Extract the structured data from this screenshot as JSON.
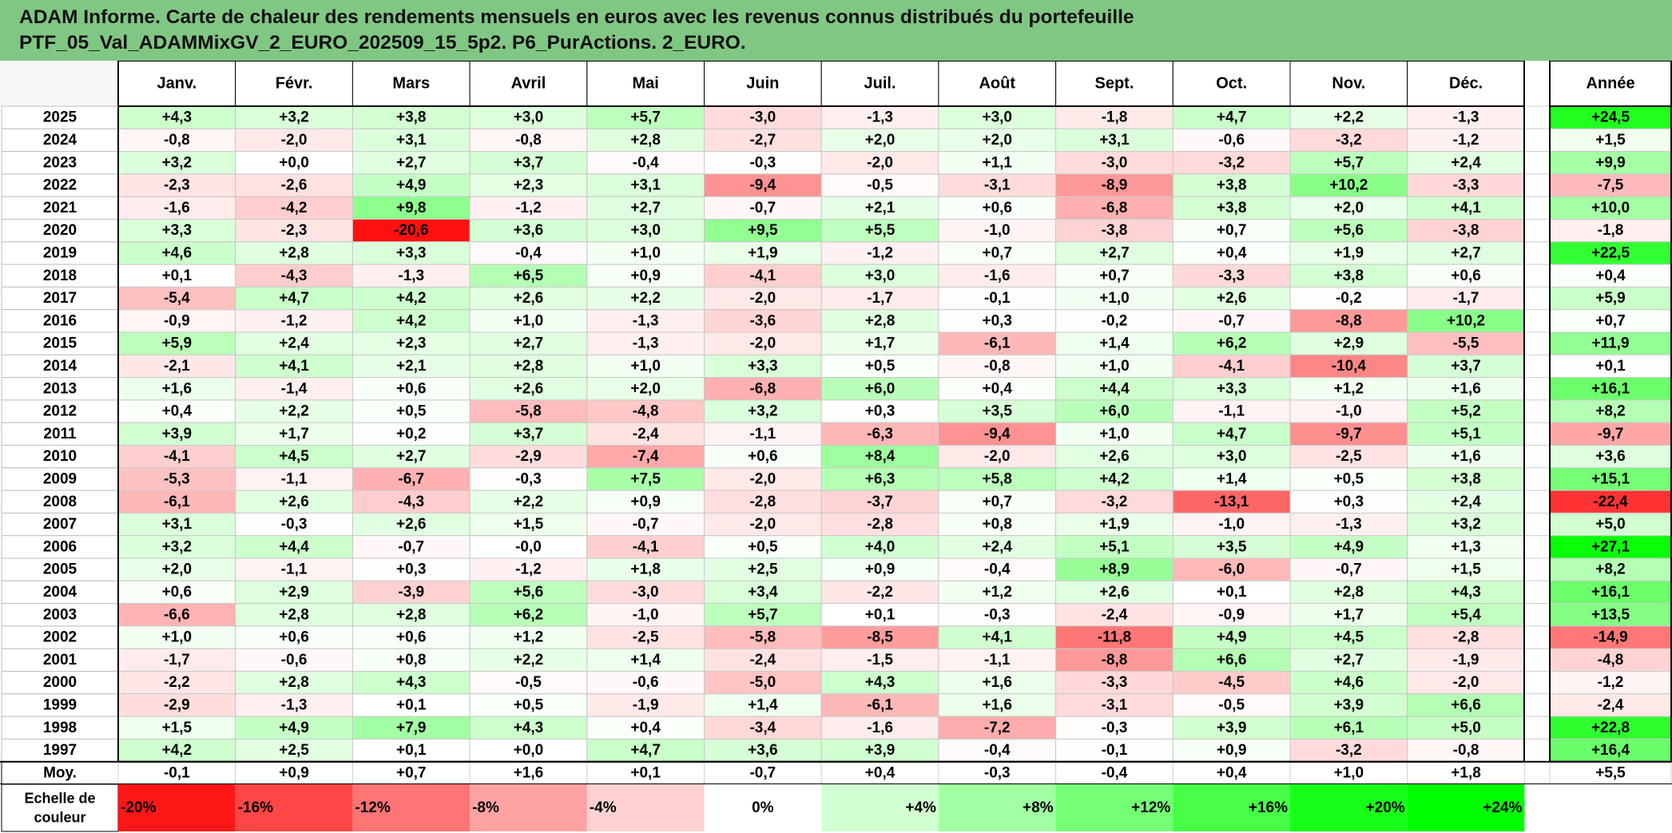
{
  "title_lines": [
    "ADAM Informe. Carte de chaleur des rendements mensuels en euros avec les revenus connus distribués du portefeuille",
    "PTF_05_Val_ADAMMixGV_2_EURO_202509_15_5p2. P6_PurActions. 2_EURO."
  ],
  "chart_data": {
    "type": "heatmap",
    "title": "ADAM Informe. Carte de chaleur des rendements mensuels en euros avec les revenus connus distribués du portefeuille PTF_05_Val_ADAMMixGV_2_EURO_202509_15_5p2. P6_PurActions. 2_EURO.",
    "columns": [
      "Janv.",
      "Févr.",
      "Mars",
      "Avril",
      "Mai",
      "Juin",
      "Juil.",
      "Août",
      "Sept.",
      "Oct.",
      "Nov.",
      "Déc."
    ],
    "year_column": "Année",
    "rows": [
      {
        "year": "2025",
        "months": [
          "+4,3",
          "+3,2",
          "+3,8",
          "+3,0",
          "+5,7",
          "-3,0",
          "-1,3",
          "+3,0",
          "-1,8",
          "+4,7",
          "+2,2",
          "-1,3"
        ],
        "annual": "+24,5"
      },
      {
        "year": "2024",
        "months": [
          "-0,8",
          "-2,0",
          "+3,1",
          "-0,8",
          "+2,8",
          "-2,7",
          "+2,0",
          "+2,0",
          "+3,1",
          "-0,6",
          "-3,2",
          "-1,2"
        ],
        "annual": "+1,5"
      },
      {
        "year": "2023",
        "months": [
          "+3,2",
          "+0,0",
          "+2,7",
          "+3,7",
          "-0,4",
          "-0,3",
          "-2,0",
          "+1,1",
          "-3,0",
          "-3,2",
          "+5,7",
          "+2,4"
        ],
        "annual": "+9,9"
      },
      {
        "year": "2022",
        "months": [
          "-2,3",
          "-2,6",
          "+4,9",
          "+2,3",
          "+3,1",
          "-9,4",
          "-0,5",
          "-3,1",
          "-8,9",
          "+3,8",
          "+10,2",
          "-3,3"
        ],
        "annual": "-7,5"
      },
      {
        "year": "2021",
        "months": [
          "-1,6",
          "-4,2",
          "+9,8",
          "-1,2",
          "+2,7",
          "-0,7",
          "+2,1",
          "+0,6",
          "-6,8",
          "+3,8",
          "+2,0",
          "+4,1"
        ],
        "annual": "+10,0"
      },
      {
        "year": "2020",
        "months": [
          "+3,3",
          "-2,3",
          "-20,6",
          "+3,6",
          "+3,0",
          "+9,5",
          "+5,5",
          "-1,0",
          "-3,8",
          "+0,7",
          "+5,6",
          "-3,8"
        ],
        "annual": "-1,8"
      },
      {
        "year": "2019",
        "months": [
          "+4,6",
          "+2,8",
          "+3,3",
          "-0,4",
          "+1,0",
          "+1,9",
          "-1,2",
          "+0,7",
          "+2,7",
          "+0,4",
          "+1,9",
          "+2,7"
        ],
        "annual": "+22,5"
      },
      {
        "year": "2018",
        "months": [
          "+0,1",
          "-4,3",
          "-1,3",
          "+6,5",
          "+0,9",
          "-4,1",
          "+3,0",
          "-1,6",
          "+0,7",
          "-3,3",
          "+3,8",
          "+0,6"
        ],
        "annual": "+0,4"
      },
      {
        "year": "2017",
        "months": [
          "-5,4",
          "+4,7",
          "+4,2",
          "+2,6",
          "+2,2",
          "-2,0",
          "-1,7",
          "-0,1",
          "+1,0",
          "+2,6",
          "-0,2",
          "-1,7"
        ],
        "annual": "+5,9"
      },
      {
        "year": "2016",
        "months": [
          "-0,9",
          "-1,2",
          "+4,2",
          "+1,0",
          "-1,3",
          "-3,6",
          "+2,8",
          "+0,3",
          "-0,2",
          "-0,7",
          "-8,8",
          "+10,2"
        ],
        "annual": "+0,7"
      },
      {
        "year": "2015",
        "months": [
          "+5,9",
          "+2,4",
          "+2,3",
          "+2,7",
          "-1,3",
          "-2,0",
          "+1,7",
          "-6,1",
          "+1,4",
          "+6,2",
          "+2,9",
          "-5,5"
        ],
        "annual": "+11,9"
      },
      {
        "year": "2014",
        "months": [
          "-2,1",
          "+4,1",
          "+2,1",
          "+2,8",
          "+1,0",
          "+3,3",
          "+0,5",
          "-0,8",
          "+1,0",
          "-4,1",
          "-10,4",
          "+3,7"
        ],
        "annual": "+0,1"
      },
      {
        "year": "2013",
        "months": [
          "+1,6",
          "-1,4",
          "+0,6",
          "+2,6",
          "+2,0",
          "-6,8",
          "+6,0",
          "+0,4",
          "+4,4",
          "+3,3",
          "+1,2",
          "+1,6"
        ],
        "annual": "+16,1"
      },
      {
        "year": "2012",
        "months": [
          "+0,4",
          "+2,2",
          "+0,5",
          "-5,8",
          "-4,8",
          "+3,2",
          "+0,3",
          "+3,5",
          "+6,0",
          "-1,1",
          "-1,0",
          "+5,2"
        ],
        "annual": "+8,2"
      },
      {
        "year": "2011",
        "months": [
          "+3,9",
          "+1,7",
          "+0,2",
          "+3,7",
          "-2,4",
          "-1,1",
          "-6,3",
          "-9,4",
          "+1,0",
          "+4,7",
          "-9,7",
          "+5,1"
        ],
        "annual": "-9,7"
      },
      {
        "year": "2010",
        "months": [
          "-4,1",
          "+4,5",
          "+2,7",
          "-2,9",
          "-7,4",
          "+0,6",
          "+8,4",
          "-2,0",
          "+2,6",
          "+3,0",
          "-2,5",
          "+1,6"
        ],
        "annual": "+3,6"
      },
      {
        "year": "2009",
        "months": [
          "-5,3",
          "-1,1",
          "-6,7",
          "-0,3",
          "+7,5",
          "-2,0",
          "+6,3",
          "+5,8",
          "+4,2",
          "+1,4",
          "+0,5",
          "+3,8"
        ],
        "annual": "+15,1"
      },
      {
        "year": "2008",
        "months": [
          "-6,1",
          "+2,6",
          "-4,3",
          "+2,2",
          "+0,9",
          "-2,8",
          "-3,7",
          "+0,7",
          "-3,2",
          "-13,1",
          "+0,3",
          "+2,4"
        ],
        "annual": "-22,4"
      },
      {
        "year": "2007",
        "months": [
          "+3,1",
          "-0,3",
          "+2,6",
          "+1,5",
          "-0,7",
          "-2,0",
          "-2,8",
          "+0,8",
          "+1,9",
          "-1,0",
          "-1,3",
          "+3,2"
        ],
        "annual": "+5,0"
      },
      {
        "year": "2006",
        "months": [
          "+3,2",
          "+4,4",
          "-0,7",
          "-0,0",
          "-4,1",
          "+0,5",
          "+4,0",
          "+2,4",
          "+5,1",
          "+3,5",
          "+4,9",
          "+1,3"
        ],
        "annual": "+27,1"
      },
      {
        "year": "2005",
        "months": [
          "+2,0",
          "-1,1",
          "+0,3",
          "-1,2",
          "+1,8",
          "+2,5",
          "+0,9",
          "-0,4",
          "+8,9",
          "-6,0",
          "-0,7",
          "+1,5"
        ],
        "annual": "+8,2"
      },
      {
        "year": "2004",
        "months": [
          "+0,6",
          "+2,9",
          "-3,9",
          "+5,6",
          "-3,0",
          "+3,4",
          "-2,2",
          "+1,2",
          "+2,6",
          "+0,1",
          "+2,8",
          "+4,3"
        ],
        "annual": "+16,1"
      },
      {
        "year": "2003",
        "months": [
          "-6,6",
          "+2,8",
          "+2,8",
          "+6,2",
          "-1,0",
          "+5,7",
          "+0,1",
          "-0,3",
          "-2,4",
          "-0,9",
          "+1,7",
          "+5,4"
        ],
        "annual": "+13,5"
      },
      {
        "year": "2002",
        "months": [
          "+1,0",
          "+0,6",
          "+0,6",
          "+1,2",
          "-2,5",
          "-5,8",
          "-8,5",
          "+4,1",
          "-11,8",
          "+4,9",
          "+4,5",
          "-2,8"
        ],
        "annual": "-14,9"
      },
      {
        "year": "2001",
        "months": [
          "-1,7",
          "-0,6",
          "+0,8",
          "+2,2",
          "+1,4",
          "-2,4",
          "-1,5",
          "-1,1",
          "-8,8",
          "+6,6",
          "+2,7",
          "-1,9"
        ],
        "annual": "-4,8"
      },
      {
        "year": "2000",
        "months": [
          "-2,2",
          "+2,8",
          "+4,3",
          "-0,5",
          "-0,6",
          "-5,0",
          "+4,3",
          "+1,6",
          "-3,3",
          "-4,5",
          "+4,6",
          "-2,0"
        ],
        "annual": "-1,2"
      },
      {
        "year": "1999",
        "months": [
          "-2,9",
          "-1,3",
          "+0,1",
          "+0,5",
          "-1,9",
          "+1,4",
          "-6,1",
          "+1,6",
          "-3,1",
          "-0,5",
          "+3,9",
          "+6,6"
        ],
        "annual": "-2,4"
      },
      {
        "year": "1998",
        "months": [
          "+1,5",
          "+4,9",
          "+7,9",
          "+4,3",
          "+0,4",
          "-3,4",
          "-1,6",
          "-7,2",
          "-0,3",
          "+3,9",
          "+6,1",
          "+5,0"
        ],
        "annual": "+22,8"
      },
      {
        "year": "1997",
        "months": [
          "+4,2",
          "+2,5",
          "+0,1",
          "+0,0",
          "+4,7",
          "+3,6",
          "+3,9",
          "-0,4",
          "-0,1",
          "+0,9",
          "-3,2",
          "-0,8"
        ],
        "annual": "+16,4"
      }
    ],
    "average": {
      "label": "Moy.",
      "months": [
        "-0,1",
        "+0,9",
        "+0,7",
        "+1,6",
        "+0,1",
        "-0,7",
        "+0,4",
        "-0,3",
        "-0,4",
        "+0,4",
        "+1,0",
        "+1,8"
      ],
      "annual": "+5,5"
    },
    "color_scale": {
      "label": "Echelle de couleur",
      "labels": [
        "-20%",
        "-16%",
        "-12%",
        "-8%",
        "-4%",
        "0%",
        "+4%",
        "+8%",
        "+12%",
        "+16%",
        "+20%",
        "+24%"
      ],
      "values": [
        -20,
        -16,
        -12,
        -8,
        -4,
        0,
        4,
        8,
        12,
        16,
        20,
        24
      ]
    },
    "colors": {
      "negative": "#ff0000",
      "positive": "#00ff00",
      "neutral": "#ffffff",
      "title_bar": "#81c784"
    }
  }
}
